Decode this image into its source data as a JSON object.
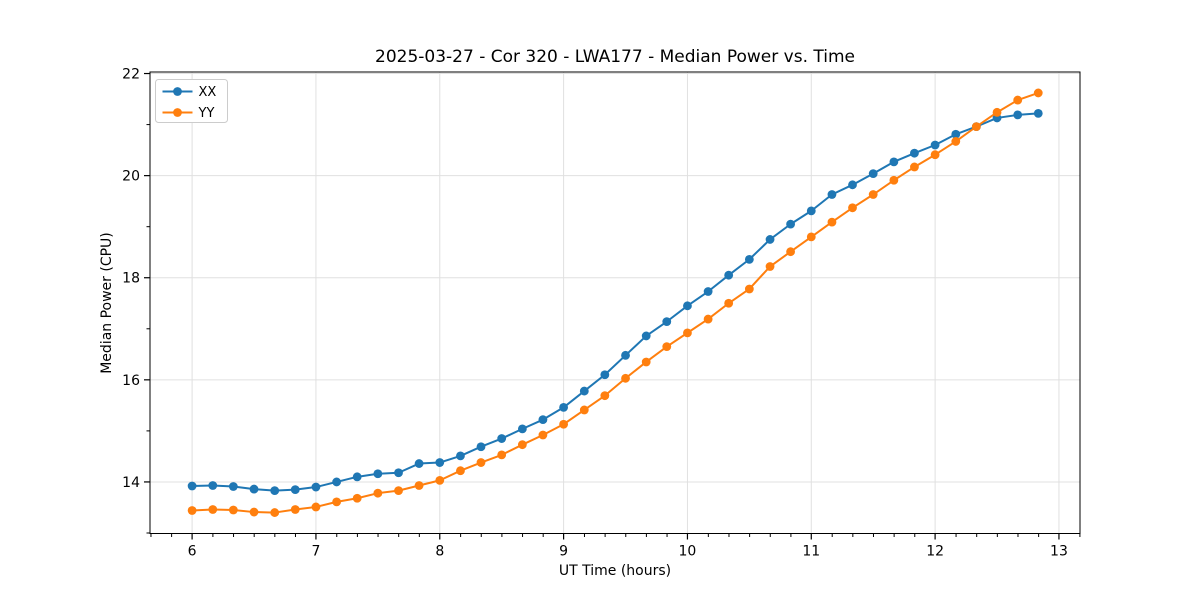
{
  "chart_data": {
    "type": "line",
    "title": "2025-03-27 - Cor 320 - LWA177 - Median Power vs. Time",
    "xlabel": "UT Time (hours)",
    "ylabel": "Median Power (CPU)",
    "xlim": [
      5.66,
      13.17
    ],
    "ylim": [
      12.99,
      22.03
    ],
    "xticks": [
      6,
      7,
      8,
      9,
      10,
      11,
      12,
      13
    ],
    "yticks": [
      14,
      16,
      18,
      20,
      22
    ],
    "x_minor_step": 0.1667,
    "y_minor_ticks": [
      13,
      15,
      17,
      19,
      21
    ],
    "grid": true,
    "legend": {
      "position": "upper-left"
    },
    "x": [
      6.0,
      6.167,
      6.333,
      6.5,
      6.667,
      6.833,
      7.0,
      7.167,
      7.333,
      7.5,
      7.667,
      7.833,
      8.0,
      8.167,
      8.333,
      8.5,
      8.667,
      8.833,
      9.0,
      9.167,
      9.333,
      9.5,
      9.667,
      9.833,
      10.0,
      10.167,
      10.333,
      10.5,
      10.667,
      10.833,
      11.0,
      11.167,
      11.333,
      11.5,
      11.667,
      11.833,
      12.0,
      12.167,
      12.333,
      12.5,
      12.667,
      12.833
    ],
    "series": [
      {
        "name": "XX",
        "color": "#1f77b4",
        "values": [
          13.92,
          13.93,
          13.91,
          13.86,
          13.83,
          13.85,
          13.9,
          14.0,
          14.1,
          14.16,
          14.18,
          14.36,
          14.38,
          14.51,
          14.69,
          14.85,
          15.04,
          15.22,
          15.46,
          15.78,
          16.1,
          16.48,
          16.86,
          17.14,
          17.45,
          17.73,
          18.05,
          18.36,
          18.75,
          19.05,
          19.31,
          19.63,
          19.82,
          20.04,
          20.27,
          20.44,
          20.6,
          20.81,
          20.96,
          21.13,
          21.19,
          21.22
        ]
      },
      {
        "name": "YY",
        "color": "#ff7f0e",
        "values": [
          13.44,
          13.46,
          13.45,
          13.41,
          13.4,
          13.46,
          13.51,
          13.61,
          13.68,
          13.78,
          13.83,
          13.93,
          14.03,
          14.22,
          14.38,
          14.53,
          14.73,
          14.92,
          15.13,
          15.41,
          15.69,
          16.03,
          16.35,
          16.65,
          16.92,
          17.19,
          17.5,
          17.78,
          18.22,
          18.51,
          18.8,
          19.09,
          19.37,
          19.63,
          19.91,
          20.17,
          20.41,
          20.67,
          20.96,
          21.24,
          21.48,
          21.62
        ]
      }
    ],
    "colors": {
      "grid": "#e0e0e0",
      "spine": "#000000",
      "tick": "#000000",
      "text": "#000000",
      "legend_border": "#cccccc",
      "legend_bg": "#ffffff"
    }
  }
}
